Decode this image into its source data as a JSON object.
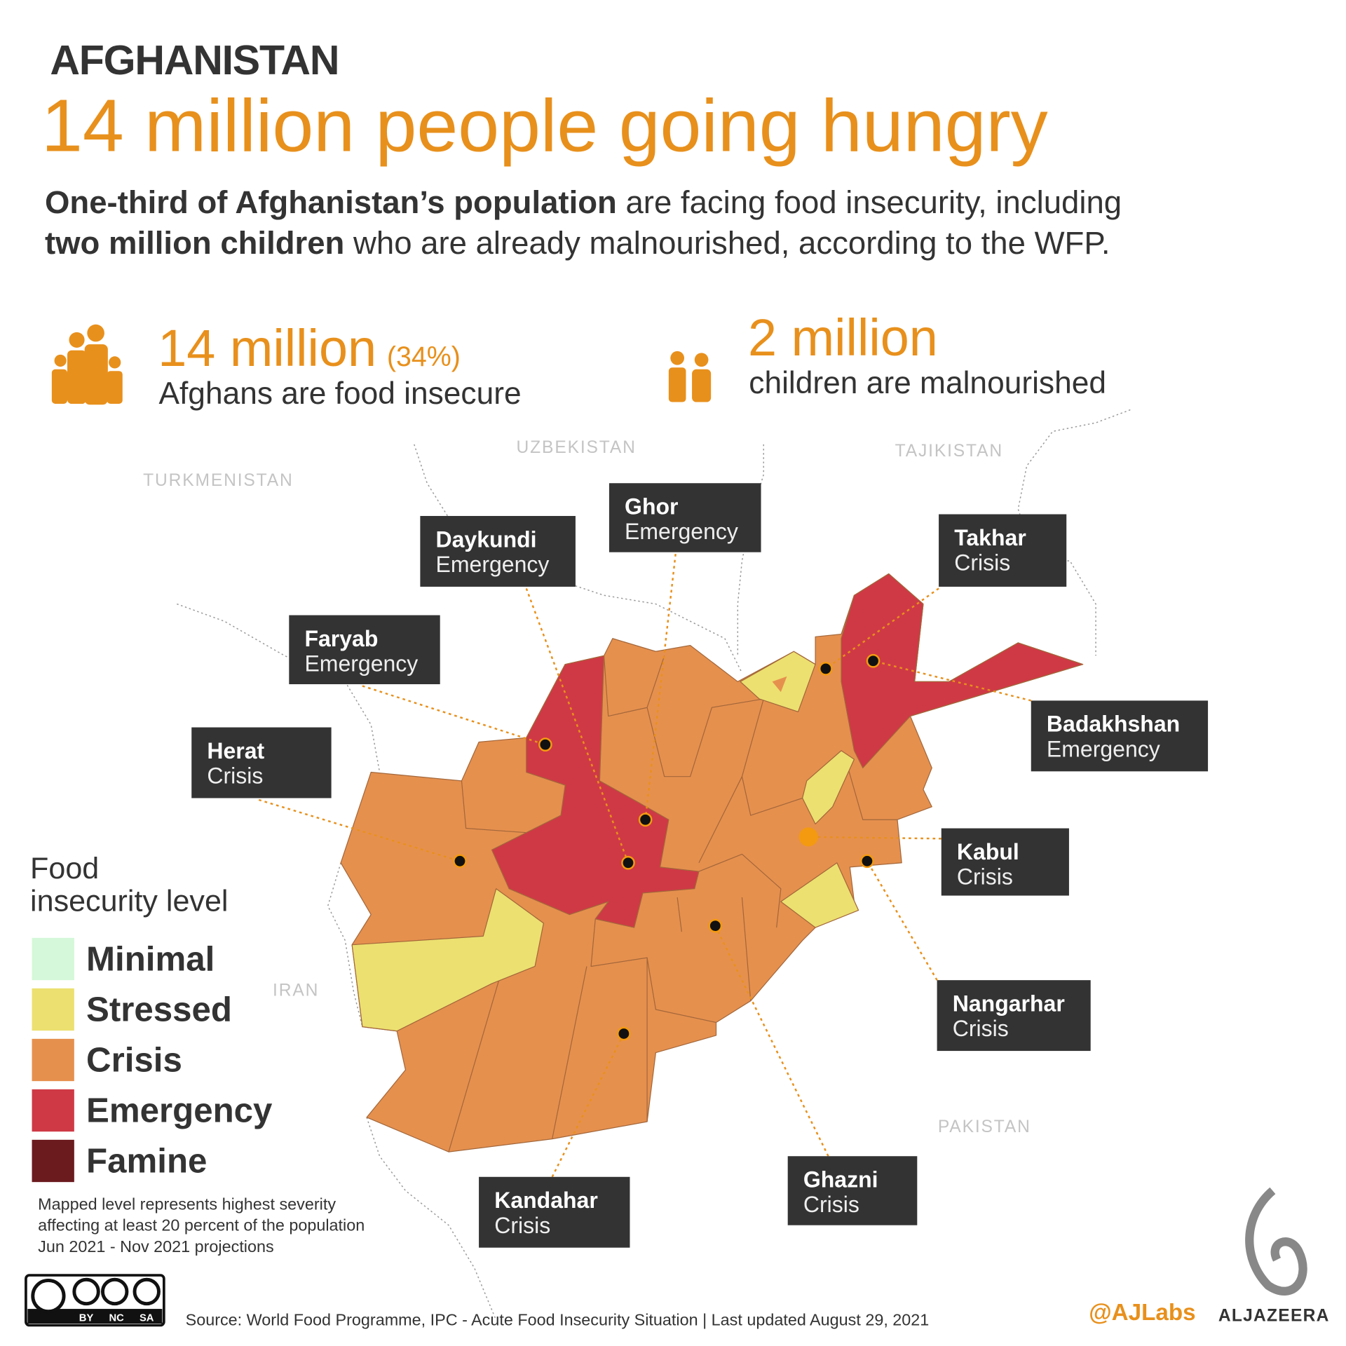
{
  "header": {
    "country": "AFGHANISTAN",
    "title": "14 million people going hungry",
    "intro": [
      [
        {
          "text": "One-third of Afghanistan’s population",
          "bold": true
        },
        {
          "text": " are facing food insecurity, including",
          "bold": false
        }
      ],
      [
        {
          "text": "two million children",
          "bold": true
        },
        {
          "text": " who are already malnourished, according to the WFP.",
          "bold": false
        }
      ]
    ]
  },
  "stats": [
    {
      "value": "14 million",
      "note": "(34%)",
      "label": "Afghans are food insecure"
    },
    {
      "value": "2 million",
      "label": "children are malnourished"
    }
  ],
  "countries": [
    "UZBEKISTAN",
    "TAJIKISTAN",
    "TURKMENISTAN",
    "IRAN",
    "PAKISTAN"
  ],
  "provinces": [
    {
      "name": "Ghor",
      "level": "Emergency"
    },
    {
      "name": "Daykundi",
      "level": "Emergency"
    },
    {
      "name": "Faryab",
      "level": "Emergency"
    },
    {
      "name": "Herat",
      "level": "Crisis"
    },
    {
      "name": "Takhar",
      "level": "Crisis"
    },
    {
      "name": "Badakhshan",
      "level": "Emergency"
    },
    {
      "name": "Kabul",
      "level": "Crisis"
    },
    {
      "name": "Nangarhar",
      "level": "Crisis"
    },
    {
      "name": "Ghazni",
      "level": "Crisis"
    },
    {
      "name": "Kandahar",
      "level": "Crisis"
    }
  ],
  "legend": {
    "title": [
      "Food",
      "insecurity level"
    ],
    "levels": [
      {
        "name": "Minimal",
        "color": "#d4f8d9"
      },
      {
        "name": "Stressed",
        "color": "#ece070"
      },
      {
        "name": "Crisis",
        "color": "#e6904e"
      },
      {
        "name": "Emergency",
        "color": "#cf3945"
      },
      {
        "name": "Famine",
        "color": "#6b1a1e"
      }
    ]
  },
  "note": [
    "Mapped level represents highest severity",
    "affecting at least 20 percent of the population",
    "Jun 2021 - Nov 2021 projections"
  ],
  "license": [
    "BY",
    "NC",
    "SA"
  ],
  "source": "Source: World Food Programme, IPC - Acute Food Insecurity Situation | Last updated August 29, 2021",
  "handle": "@AJLabs",
  "brand": "ALJAZEERA"
}
